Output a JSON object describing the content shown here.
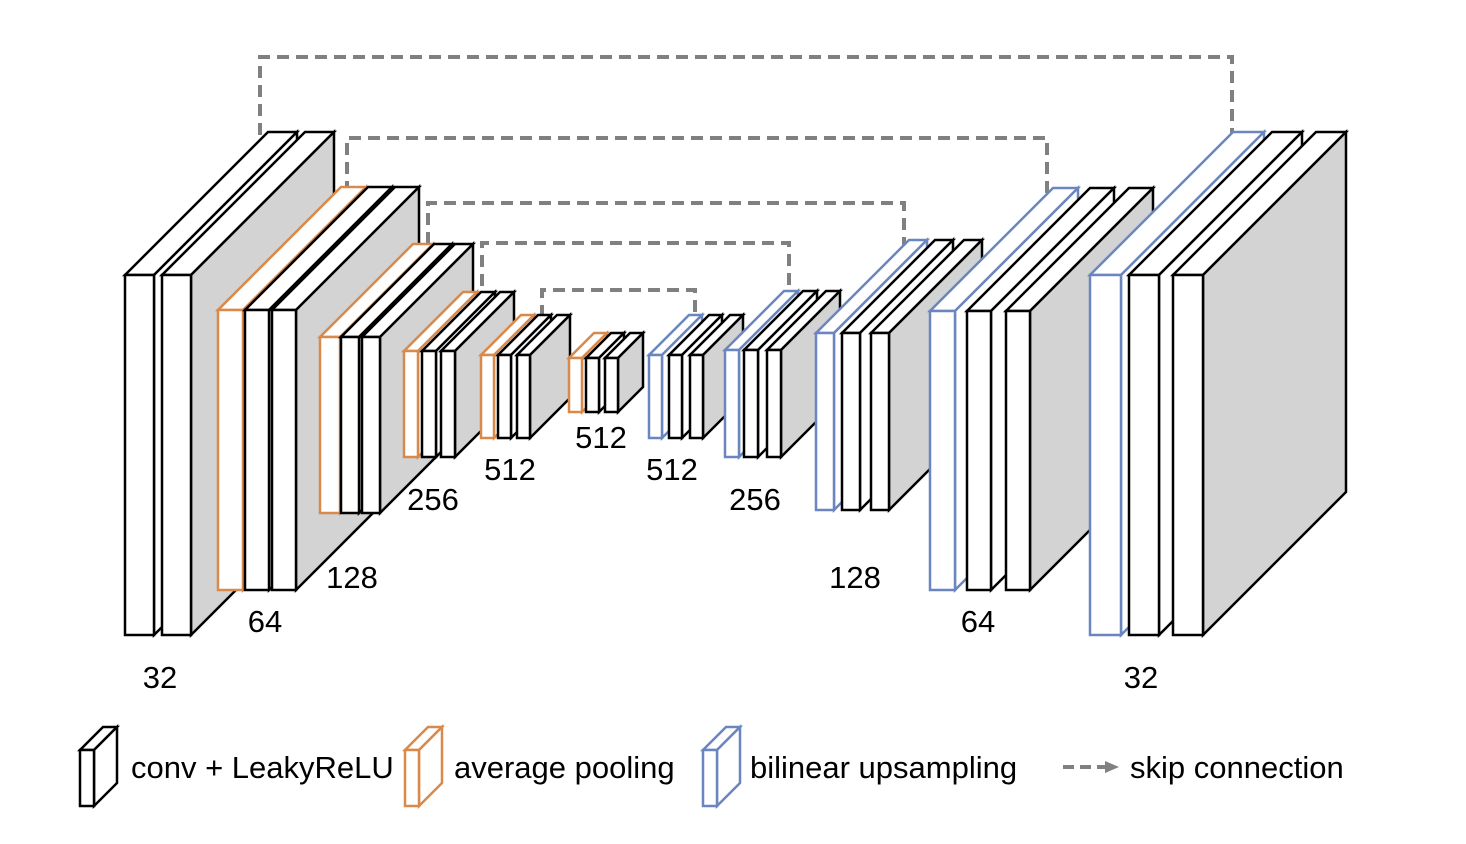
{
  "colors": {
    "conv": "#000000",
    "pool": "#d9894a",
    "upsample": "#6b86bf",
    "skip": "#808080",
    "side": "#d3d3d3",
    "background": "#ffffff"
  },
  "channel_labels": [
    {
      "id": "enc-32",
      "text": "32"
    },
    {
      "id": "enc-64",
      "text": "64"
    },
    {
      "id": "enc-128",
      "text": "128"
    },
    {
      "id": "enc-256",
      "text": "256"
    },
    {
      "id": "enc-512",
      "text": "512"
    },
    {
      "id": "bottleneck-512",
      "text": "512"
    },
    {
      "id": "dec-512",
      "text": "512"
    },
    {
      "id": "dec-256",
      "text": "256"
    },
    {
      "id": "dec-128",
      "text": "128"
    },
    {
      "id": "dec-64",
      "text": "64"
    },
    {
      "id": "dec-32",
      "text": "32"
    }
  ],
  "legend": [
    {
      "id": "conv",
      "icon": "conv-block-icon",
      "label": "conv + LeakyReLU"
    },
    {
      "id": "pool",
      "icon": "pool-block-icon",
      "label": "average pooling"
    },
    {
      "id": "upsample",
      "icon": "upsample-block-icon",
      "label": "bilinear upsampling"
    },
    {
      "id": "skip",
      "icon": "dashed-arrow-icon",
      "label": "skip connection"
    }
  ]
}
